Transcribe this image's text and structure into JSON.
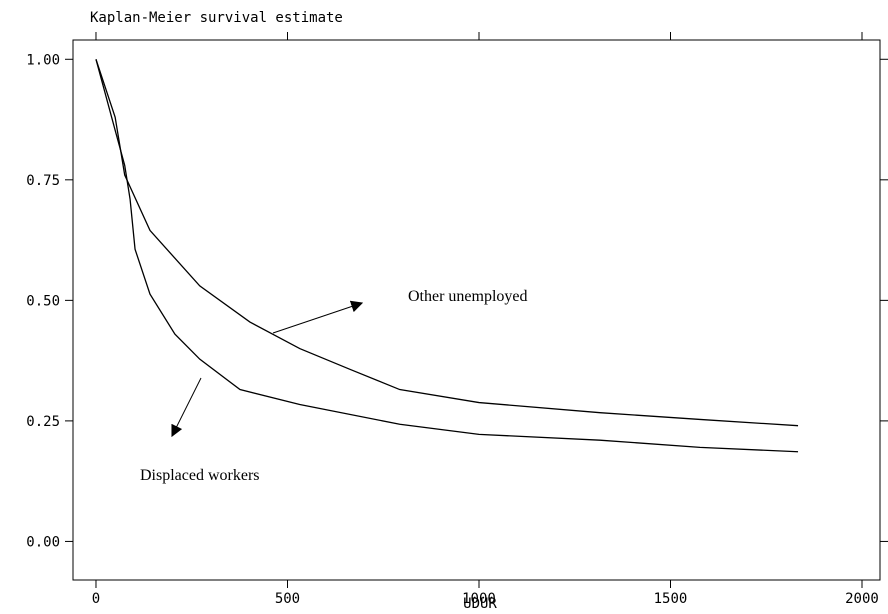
{
  "chart_data": {
    "type": "line",
    "title": "Kaplan-Meier survival estimate",
    "x_label": "UDUR",
    "xlim": [
      -60,
      2047
    ],
    "ylim": [
      -0.08,
      1.04
    ],
    "xticks": [
      0,
      500,
      1000,
      1500,
      2000
    ],
    "yticks": [
      {
        "value": 1,
        "label": "1.00"
      },
      0.75,
      {
        "value": 0.5,
        "label": "0.50"
      },
      0.25,
      {
        "value": 0,
        "label": "0.00"
      }
    ],
    "grid": false,
    "series": [
      {
        "name": "Other unemployed",
        "color": "#000000",
        "x": [
          0,
          50,
          75,
          141,
          271,
          402,
          532,
          663,
          793,
          1000,
          1316,
          1577,
          1833
        ],
        "values": [
          1.0,
          0.88,
          0.76,
          0.645,
          0.53,
          0.455,
          0.4,
          0.357,
          0.315,
          0.288,
          0.267,
          0.253,
          0.24
        ]
      },
      {
        "name": "Displaced workers",
        "color": "#000000",
        "x": [
          0,
          50,
          75,
          89,
          102,
          141,
          206,
          271,
          376,
          532,
          793,
          1000,
          1316,
          1577,
          1833
        ],
        "values": [
          1.0,
          0.853,
          0.78,
          0.71,
          0.606,
          0.513,
          0.43,
          0.378,
          0.315,
          0.284,
          0.243,
          0.222,
          0.21,
          0.195,
          0.186
        ]
      }
    ]
  }
}
